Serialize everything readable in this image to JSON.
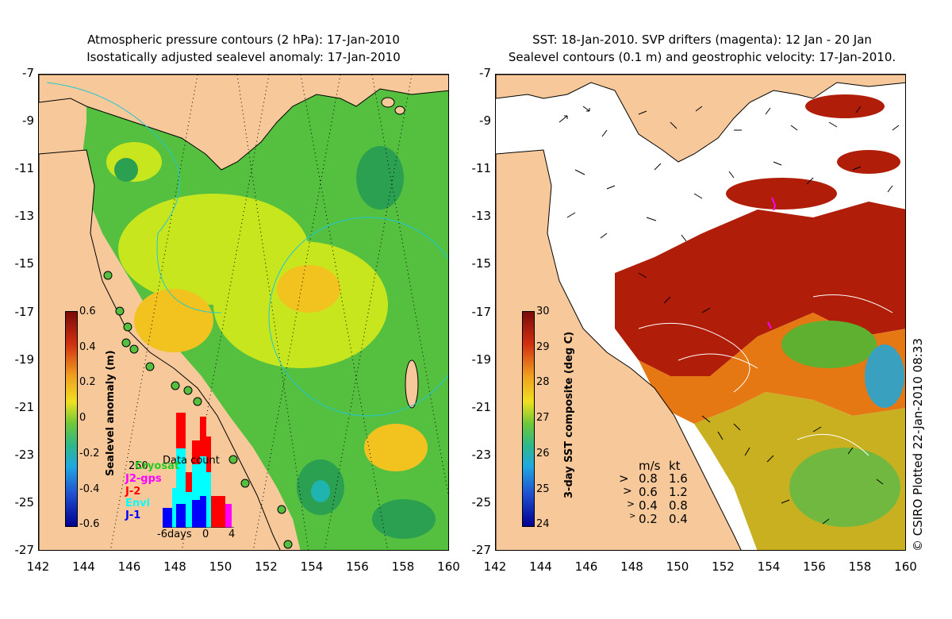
{
  "left": {
    "title_line1": "Atmospheric pressure contours (2 hPa): 17-Jan-2010",
    "title_line2": "Isostatically adjusted sealevel anomaly: 17-Jan-2010",
    "colorbar": {
      "label": "Sealevel anomaly (m)",
      "ticks": [
        "0.6",
        "0.4",
        "0.2",
        "0",
        "-0.2",
        "-0.4",
        "-0.6"
      ]
    },
    "data_count": {
      "title": "Data count",
      "max_label": "250",
      "legend": [
        {
          "name": "Jason-1 (hidden)",
          "label": "Cryosat",
          "color": "#22cc22"
        },
        {
          "name": "J2-gps",
          "label": "J2-gps",
          "color": "#ff00ff"
        },
        {
          "name": "J-2",
          "label": "J-2",
          "color": "#ff0000"
        },
        {
          "name": "Envi",
          "label": "Envi",
          "color": "#00ffff"
        },
        {
          "name": "J-1",
          "label": "J-1",
          "color": "#0000ff"
        }
      ],
      "x_ticks": [
        "-6days",
        "0",
        "4"
      ]
    }
  },
  "right": {
    "title_line1": "SST: 18-Jan-2010. SVP drifters (magenta): 12 Jan - 20 Jan",
    "title_line2": "Sealevel contours (0.1 m) and geostrophic velocity: 17-Jan-2010.",
    "colorbar": {
      "label": "3-day SST composite (deg C)",
      "ticks": [
        "30",
        "29",
        "28",
        "27",
        "26",
        "25",
        "24"
      ]
    },
    "velocity_legend": {
      "header_ms": "m/s",
      "header_kt": "kt",
      "rows": [
        {
          "ms": "0.8",
          "kt": "1.6"
        },
        {
          "ms": "0.6",
          "kt": "1.2"
        },
        {
          "ms": "0.4",
          "kt": "0.8"
        },
        {
          "ms": "0.2",
          "kt": "0.4"
        }
      ]
    }
  },
  "axes": {
    "lat_ticks": [
      "-7",
      "-9",
      "-11",
      "-13",
      "-15",
      "-17",
      "-19",
      "-21",
      "-23",
      "-25",
      "-27"
    ],
    "lon_ticks": [
      "142",
      "144",
      "146",
      "148",
      "150",
      "152",
      "154",
      "156",
      "158",
      "160"
    ]
  },
  "copyright": "© CSIRO Plotted 22-Jan-2010 08:33",
  "colors": {
    "land": "#f7c99a",
    "sea_green": "#55c040",
    "sea_yellow": "#c8e61e",
    "sea_orange": "#f2c21e",
    "sst_red": "#b01e0a",
    "sst_orange": "#e67814",
    "cloud": "#ffffff"
  }
}
